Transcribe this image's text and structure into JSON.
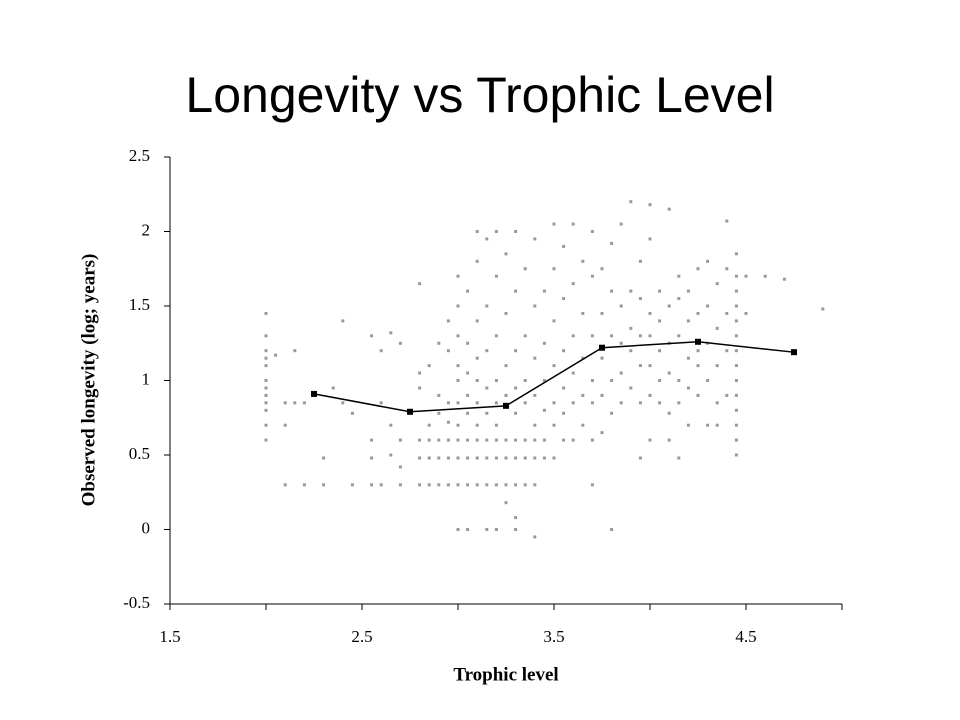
{
  "chart_data": {
    "type": "scatter",
    "title": "Longevity vs Trophic Level",
    "x_label": "Trophic level",
    "y_label": "Observed longevity (log; years)",
    "xlim": [
      1.5,
      5
    ],
    "xticks": [
      1.5,
      2.5,
      3.5,
      4.5
    ],
    "xminorticks": [
      2,
      3,
      4,
      5
    ],
    "ylim": [
      -0.5,
      2.5
    ],
    "yticks": [
      -0.5,
      0,
      0.5,
      1,
      1.5,
      2,
      2.5
    ],
    "grid": false,
    "series": [
      {
        "color": "#999999",
        "marker": "dot",
        "line": false,
        "x": [
          2.0,
          2.0,
          2.0,
          2.0,
          2.0,
          2.0,
          2.0,
          2.0,
          2.0,
          2.0,
          2.0,
          2.0,
          2.05,
          2.1,
          2.1,
          2.1,
          2.15,
          2.15,
          2.2,
          2.2,
          2.3,
          2.3,
          2.35,
          2.4,
          2.4,
          2.45,
          2.45,
          2.55,
          2.55,
          2.55,
          2.55,
          2.6,
          2.6,
          2.6,
          2.65,
          2.65,
          2.65,
          2.7,
          2.7,
          2.7,
          2.7,
          2.8,
          2.8,
          2.8,
          2.8,
          2.8,
          2.8,
          2.85,
          2.85,
          2.85,
          2.85,
          2.85,
          2.9,
          2.9,
          2.9,
          2.9,
          2.9,
          2.9,
          2.95,
          2.95,
          2.95,
          2.95,
          2.95,
          2.95,
          2.95,
          3.0,
          3.0,
          3.0,
          3.0,
          3.0,
          3.0,
          3.0,
          3.0,
          3.0,
          3.0,
          3.0,
          3.05,
          3.05,
          3.05,
          3.05,
          3.05,
          3.05,
          3.05,
          3.05,
          3.05,
          3.1,
          3.1,
          3.1,
          3.1,
          3.1,
          3.1,
          3.1,
          3.1,
          3.1,
          3.1,
          3.15,
          3.15,
          3.15,
          3.15,
          3.15,
          3.15,
          3.15,
          3.15,
          3.15,
          3.2,
          3.2,
          3.2,
          3.2,
          3.2,
          3.2,
          3.2,
          3.2,
          3.2,
          3.2,
          3.25,
          3.25,
          3.25,
          3.25,
          3.25,
          3.25,
          3.25,
          3.25,
          3.3,
          3.3,
          3.3,
          3.3,
          3.3,
          3.3,
          3.3,
          3.3,
          3.3,
          3.3,
          3.35,
          3.35,
          3.35,
          3.35,
          3.35,
          3.35,
          3.35,
          3.4,
          3.4,
          3.4,
          3.4,
          3.4,
          3.4,
          3.4,
          3.4,
          3.4,
          3.45,
          3.45,
          3.45,
          3.45,
          3.45,
          3.45,
          3.5,
          3.5,
          3.5,
          3.5,
          3.5,
          3.5,
          3.5,
          3.55,
          3.55,
          3.55,
          3.55,
          3.55,
          3.55,
          3.6,
          3.6,
          3.6,
          3.6,
          3.6,
          3.6,
          3.65,
          3.65,
          3.65,
          3.65,
          3.65,
          3.7,
          3.7,
          3.7,
          3.7,
          3.7,
          3.7,
          3.7,
          3.75,
          3.75,
          3.75,
          3.75,
          3.75,
          3.8,
          3.8,
          3.8,
          3.8,
          3.8,
          3.8,
          3.85,
          3.85,
          3.85,
          3.85,
          3.85,
          3.9,
          3.9,
          3.9,
          3.9,
          3.9,
          3.95,
          3.95,
          3.95,
          3.95,
          3.95,
          3.95,
          4.0,
          4.0,
          4.0,
          4.0,
          4.0,
          4.0,
          4.0,
          4.05,
          4.05,
          4.05,
          4.05,
          4.05,
          4.1,
          4.1,
          4.1,
          4.1,
          4.1,
          4.1,
          4.15,
          4.15,
          4.15,
          4.15,
          4.15,
          4.15,
          4.2,
          4.2,
          4.2,
          4.2,
          4.2,
          4.25,
          4.25,
          4.25,
          4.25,
          4.25,
          4.3,
          4.3,
          4.3,
          4.3,
          4.3,
          4.35,
          4.35,
          4.35,
          4.35,
          4.35,
          4.4,
          4.4,
          4.4,
          4.4,
          4.4,
          4.45,
          4.45,
          4.45,
          4.45,
          4.45,
          4.45,
          4.45,
          4.45,
          4.45,
          4.45,
          4.45,
          4.45,
          4.45,
          4.45,
          4.5,
          4.5,
          4.6,
          4.7,
          4.9
        ],
        "values": [
          0.6,
          0.7,
          0.8,
          0.9,
          1.0,
          1.1,
          1.2,
          1.3,
          1.45,
          0.85,
          0.95,
          1.15,
          1.17,
          0.3,
          0.7,
          0.85,
          1.2,
          0.85,
          0.85,
          0.3,
          0.48,
          0.3,
          0.95,
          0.85,
          1.4,
          0.3,
          0.78,
          0.6,
          0.48,
          0.3,
          1.3,
          1.2,
          0.85,
          0.3,
          0.7,
          0.5,
          1.32,
          0.6,
          0.42,
          1.25,
          0.3,
          1.65,
          0.6,
          0.48,
          0.3,
          0.95,
          1.05,
          0.3,
          0.48,
          0.6,
          0.7,
          1.1,
          0.3,
          0.48,
          0.6,
          0.78,
          1.25,
          0.9,
          1.2,
          0.3,
          0.48,
          0.6,
          0.72,
          0.85,
          1.4,
          0,
          0.3,
          0.48,
          0.6,
          0.7,
          0.85,
          1.0,
          1.1,
          1.3,
          1.5,
          1.7,
          0,
          0.3,
          0.48,
          0.6,
          0.78,
          0.9,
          1.05,
          1.25,
          1.6,
          0.3,
          0.48,
          0.6,
          0.7,
          0.85,
          1.0,
          1.15,
          1.4,
          1.8,
          2.0,
          0,
          0.3,
          0.48,
          0.6,
          0.78,
          0.95,
          1.2,
          1.5,
          1.95,
          0,
          0.3,
          0.48,
          0.6,
          0.7,
          0.85,
          1.0,
          1.3,
          1.7,
          2.0,
          0.18,
          0.3,
          0.48,
          0.6,
          0.9,
          1.1,
          1.45,
          1.85,
          0,
          0.08,
          0.3,
          0.48,
          0.6,
          0.78,
          0.95,
          1.2,
          1.6,
          2.0,
          0.3,
          0.48,
          0.6,
          0.85,
          1.0,
          1.3,
          1.75,
          -0.05,
          0.3,
          0.48,
          0.6,
          0.7,
          0.9,
          1.15,
          1.5,
          1.95,
          0.48,
          0.6,
          0.8,
          1.0,
          1.25,
          1.6,
          0.48,
          0.7,
          0.85,
          1.1,
          1.4,
          1.75,
          2.05,
          0.6,
          0.78,
          0.95,
          1.2,
          1.55,
          1.9,
          0.6,
          0.85,
          1.05,
          1.3,
          1.65,
          2.05,
          0.7,
          0.9,
          1.15,
          1.45,
          1.8,
          0.3,
          0.6,
          0.85,
          1.0,
          1.3,
          1.7,
          2.0,
          0.65,
          0.9,
          1.15,
          1.45,
          1.75,
          0,
          0.78,
          1.0,
          1.3,
          1.6,
          1.92,
          0.85,
          1.05,
          1.25,
          1.5,
          2.05,
          0.95,
          1.2,
          1.35,
          1.6,
          2.2,
          0.48,
          0.85,
          1.1,
          1.3,
          1.55,
          1.8,
          0.6,
          0.9,
          1.1,
          1.3,
          1.45,
          1.95,
          2.18,
          0.85,
          1.0,
          1.2,
          1.4,
          1.6,
          0.6,
          0.78,
          1.05,
          1.25,
          1.5,
          2.15,
          0.48,
          0.85,
          1.0,
          1.3,
          1.55,
          1.7,
          0.7,
          0.95,
          1.15,
          1.4,
          1.6,
          0.9,
          1.1,
          1.2,
          1.45,
          1.75,
          0.7,
          1.0,
          1.25,
          1.5,
          1.8,
          0.7,
          0.85,
          1.1,
          1.35,
          1.65,
          0.9,
          1.2,
          1.45,
          2.07,
          1.75,
          0.5,
          0.6,
          0.7,
          0.8,
          0.9,
          1.0,
          1.1,
          1.2,
          1.3,
          1.4,
          1.5,
          1.6,
          1.7,
          1.85,
          1.7,
          1.45,
          1.7,
          1.68,
          1.48
        ]
      },
      {
        "color": "#000000",
        "marker": "square",
        "line": true,
        "x": [
          2.25,
          2.75,
          3.25,
          3.75,
          4.25,
          4.75
        ],
        "values": [
          0.91,
          0.79,
          0.83,
          1.22,
          1.26,
          1.19
        ]
      }
    ]
  }
}
